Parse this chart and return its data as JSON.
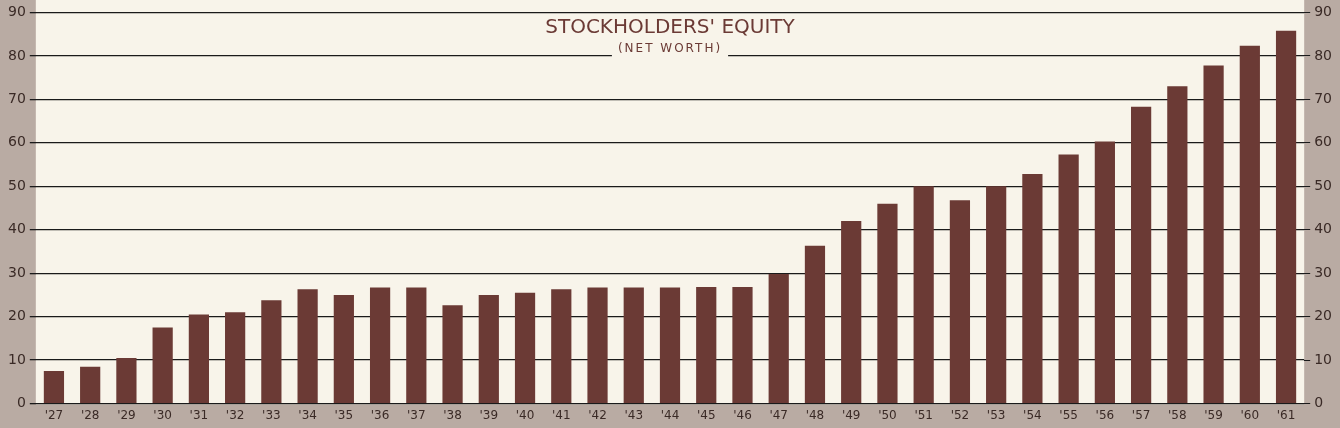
{
  "chart_data": {
    "type": "bar",
    "title": "STOCKHOLDERS' EQUITY",
    "subtitle": "(NET WORTH)",
    "categories": [
      "'27",
      "'28",
      "'29",
      "'30",
      "'31",
      "'32",
      "'33",
      "'34",
      "'35",
      "'36",
      "'37",
      "'38",
      "'39",
      "'40",
      "'41",
      "'42",
      "'43",
      "'44",
      "'45",
      "'46",
      "'47",
      "'48",
      "'49",
      "'50",
      "'51",
      "'52",
      "'53",
      "'54",
      "'55",
      "'56",
      "'57",
      "'58",
      "'59",
      "'60",
      "'61"
    ],
    "values": [
      7.5,
      8.5,
      10.5,
      17.5,
      20.5,
      21,
      23.8,
      26.3,
      25,
      26.7,
      26.7,
      22.6,
      25,
      25.5,
      26.3,
      26.7,
      26.7,
      26.7,
      26.8,
      26.8,
      29.8,
      36.3,
      42,
      46,
      50,
      46.8,
      50,
      52.8,
      57.3,
      60.3,
      68.3,
      73,
      77.8,
      82.3,
      85.8
    ],
    "color": "#6b3a35",
    "ylim": [
      0,
      90
    ],
    "yticks": [
      0,
      10,
      20,
      30,
      40,
      50,
      60,
      70,
      80,
      90
    ],
    "y2lim": [
      0,
      90
    ],
    "y2ticks": [
      0,
      10,
      20,
      30,
      40,
      50,
      60,
      70,
      80,
      90
    ],
    "grid": "y"
  }
}
